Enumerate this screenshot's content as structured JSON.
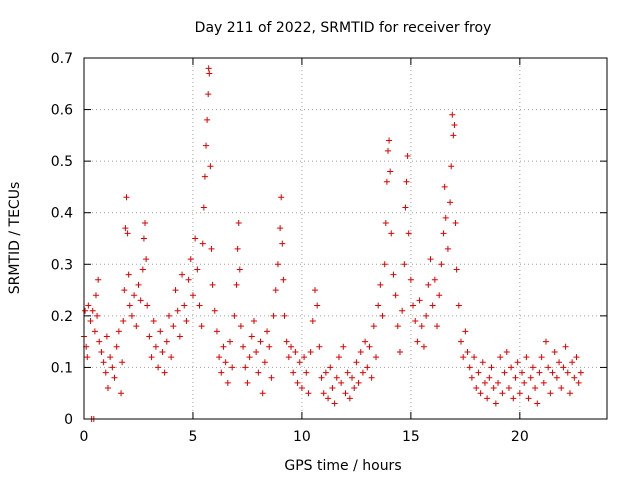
{
  "chart_data": {
    "type": "scatter",
    "title": "Day 211 of 2022, SRMTID for receiver froy",
    "xlabel": "GPS time / hours",
    "ylabel": "SRMTID / TECUs",
    "xlim": [
      0,
      24
    ],
    "ylim": [
      0,
      0.7
    ],
    "xticks": [
      0,
      5,
      10,
      15,
      20
    ],
    "xtick_labels": [
      "0",
      "5",
      "10",
      "15",
      "20"
    ],
    "yticks": [
      0,
      0.1,
      0.2,
      0.3,
      0.4,
      0.5,
      0.6,
      0.7
    ],
    "ytick_labels": [
      "0",
      "0.1",
      "0.2",
      "0.3",
      "0.4",
      "0.5",
      "0.6",
      "0.7"
    ],
    "grid": true,
    "marker": "+",
    "marker_color": "#e00000",
    "series": [
      {
        "name": "SRMTID",
        "color": "#e00000",
        "points": [
          [
            0.0,
            0.16
          ],
          [
            0.05,
            0.21
          ],
          [
            0.1,
            0.14
          ],
          [
            0.15,
            0.12
          ],
          [
            0.2,
            0.22
          ],
          [
            0.3,
            0.19
          ],
          [
            0.35,
            0.0
          ],
          [
            0.4,
            0.21
          ],
          [
            0.45,
            0.0
          ],
          [
            0.5,
            0.17
          ],
          [
            0.55,
            0.24
          ],
          [
            0.6,
            0.2
          ],
          [
            0.65,
            0.27
          ],
          [
            0.7,
            0.15
          ],
          [
            0.8,
            0.13
          ],
          [
            0.9,
            0.11
          ],
          [
            1.0,
            0.09
          ],
          [
            1.05,
            0.16
          ],
          [
            1.1,
            0.06
          ],
          [
            1.2,
            0.12
          ],
          [
            1.3,
            0.1
          ],
          [
            1.4,
            0.08
          ],
          [
            1.5,
            0.14
          ],
          [
            1.6,
            0.17
          ],
          [
            1.7,
            0.05
          ],
          [
            1.75,
            0.11
          ],
          [
            1.8,
            0.19
          ],
          [
            1.85,
            0.25
          ],
          [
            1.9,
            0.37
          ],
          [
            1.95,
            0.43
          ],
          [
            2.0,
            0.36
          ],
          [
            2.05,
            0.28
          ],
          [
            2.1,
            0.22
          ],
          [
            2.2,
            0.2
          ],
          [
            2.3,
            0.24
          ],
          [
            2.4,
            0.18
          ],
          [
            2.5,
            0.26
          ],
          [
            2.6,
            0.23
          ],
          [
            2.7,
            0.29
          ],
          [
            2.75,
            0.35
          ],
          [
            2.8,
            0.38
          ],
          [
            2.85,
            0.31
          ],
          [
            2.9,
            0.22
          ],
          [
            3.0,
            0.16
          ],
          [
            3.1,
            0.12
          ],
          [
            3.2,
            0.19
          ],
          [
            3.3,
            0.14
          ],
          [
            3.4,
            0.1
          ],
          [
            3.5,
            0.17
          ],
          [
            3.6,
            0.13
          ],
          [
            3.7,
            0.09
          ],
          [
            3.8,
            0.15
          ],
          [
            3.9,
            0.2
          ],
          [
            4.0,
            0.12
          ],
          [
            4.1,
            0.18
          ],
          [
            4.2,
            0.25
          ],
          [
            4.3,
            0.21
          ],
          [
            4.4,
            0.16
          ],
          [
            4.5,
            0.28
          ],
          [
            4.6,
            0.22
          ],
          [
            4.7,
            0.19
          ],
          [
            4.8,
            0.27
          ],
          [
            4.9,
            0.31
          ],
          [
            5.0,
            0.24
          ],
          [
            5.1,
            0.35
          ],
          [
            5.2,
            0.29
          ],
          [
            5.3,
            0.22
          ],
          [
            5.4,
            0.18
          ],
          [
            5.45,
            0.34
          ],
          [
            5.5,
            0.41
          ],
          [
            5.55,
            0.47
          ],
          [
            5.6,
            0.53
          ],
          [
            5.65,
            0.58
          ],
          [
            5.7,
            0.63
          ],
          [
            5.72,
            0.68
          ],
          [
            5.75,
            0.67
          ],
          [
            5.8,
            0.49
          ],
          [
            5.85,
            0.33
          ],
          [
            5.9,
            0.26
          ],
          [
            6.0,
            0.21
          ],
          [
            6.1,
            0.17
          ],
          [
            6.2,
            0.12
          ],
          [
            6.3,
            0.09
          ],
          [
            6.4,
            0.14
          ],
          [
            6.5,
            0.11
          ],
          [
            6.6,
            0.07
          ],
          [
            6.7,
            0.15
          ],
          [
            6.8,
            0.1
          ],
          [
            6.9,
            0.2
          ],
          [
            7.0,
            0.26
          ],
          [
            7.05,
            0.33
          ],
          [
            7.1,
            0.38
          ],
          [
            7.15,
            0.29
          ],
          [
            7.2,
            0.18
          ],
          [
            7.3,
            0.14
          ],
          [
            7.4,
            0.1
          ],
          [
            7.5,
            0.07
          ],
          [
            7.6,
            0.12
          ],
          [
            7.7,
            0.16
          ],
          [
            7.8,
            0.19
          ],
          [
            7.9,
            0.13
          ],
          [
            8.0,
            0.09
          ],
          [
            8.1,
            0.15
          ],
          [
            8.2,
            0.05
          ],
          [
            8.3,
            0.11
          ],
          [
            8.4,
            0.17
          ],
          [
            8.5,
            0.14
          ],
          [
            8.6,
            0.08
          ],
          [
            8.7,
            0.2
          ],
          [
            8.8,
            0.25
          ],
          [
            8.9,
            0.3
          ],
          [
            9.0,
            0.37
          ],
          [
            9.05,
            0.43
          ],
          [
            9.1,
            0.34
          ],
          [
            9.15,
            0.27
          ],
          [
            9.2,
            0.2
          ],
          [
            9.3,
            0.15
          ],
          [
            9.4,
            0.12
          ],
          [
            9.5,
            0.14
          ],
          [
            9.6,
            0.09
          ],
          [
            9.7,
            0.13
          ],
          [
            9.8,
            0.07
          ],
          [
            9.9,
            0.11
          ],
          [
            10.0,
            0.06
          ],
          [
            10.1,
            0.12
          ],
          [
            10.2,
            0.09
          ],
          [
            10.3,
            0.05
          ],
          [
            10.4,
            0.13
          ],
          [
            10.5,
            0.19
          ],
          [
            10.6,
            0.25
          ],
          [
            10.7,
            0.22
          ],
          [
            10.8,
            0.14
          ],
          [
            10.9,
            0.08
          ],
          [
            11.0,
            0.05
          ],
          [
            11.1,
            0.09
          ],
          [
            11.2,
            0.04
          ],
          [
            11.3,
            0.1
          ],
          [
            11.4,
            0.06
          ],
          [
            11.5,
            0.03
          ],
          [
            11.6,
            0.08
          ],
          [
            11.7,
            0.12
          ],
          [
            11.8,
            0.07
          ],
          [
            11.9,
            0.14
          ],
          [
            12.0,
            0.05
          ],
          [
            12.1,
            0.09
          ],
          [
            12.2,
            0.04
          ],
          [
            12.3,
            0.08
          ],
          [
            12.4,
            0.06
          ],
          [
            12.5,
            0.11
          ],
          [
            12.6,
            0.07
          ],
          [
            12.7,
            0.13
          ],
          [
            12.8,
            0.09
          ],
          [
            12.9,
            0.15
          ],
          [
            13.0,
            0.1
          ],
          [
            13.1,
            0.14
          ],
          [
            13.2,
            0.08
          ],
          [
            13.3,
            0.18
          ],
          [
            13.4,
            0.12
          ],
          [
            13.5,
            0.22
          ],
          [
            13.6,
            0.26
          ],
          [
            13.7,
            0.2
          ],
          [
            13.8,
            0.3
          ],
          [
            13.85,
            0.38
          ],
          [
            13.9,
            0.46
          ],
          [
            13.95,
            0.52
          ],
          [
            14.0,
            0.54
          ],
          [
            14.05,
            0.48
          ],
          [
            14.1,
            0.36
          ],
          [
            14.2,
            0.28
          ],
          [
            14.3,
            0.24
          ],
          [
            14.4,
            0.18
          ],
          [
            14.5,
            0.13
          ],
          [
            14.6,
            0.21
          ],
          [
            14.7,
            0.3
          ],
          [
            14.75,
            0.41
          ],
          [
            14.8,
            0.46
          ],
          [
            14.85,
            0.51
          ],
          [
            14.9,
            0.36
          ],
          [
            15.0,
            0.27
          ],
          [
            15.1,
            0.22
          ],
          [
            15.2,
            0.19
          ],
          [
            15.3,
            0.15
          ],
          [
            15.4,
            0.23
          ],
          [
            15.5,
            0.18
          ],
          [
            15.6,
            0.14
          ],
          [
            15.7,
            0.2
          ],
          [
            15.8,
            0.26
          ],
          [
            15.9,
            0.31
          ],
          [
            16.0,
            0.22
          ],
          [
            16.1,
            0.27
          ],
          [
            16.2,
            0.18
          ],
          [
            16.3,
            0.24
          ],
          [
            16.4,
            0.3
          ],
          [
            16.5,
            0.36
          ],
          [
            16.55,
            0.45
          ],
          [
            16.6,
            0.39
          ],
          [
            16.7,
            0.33
          ],
          [
            16.8,
            0.42
          ],
          [
            16.85,
            0.49
          ],
          [
            16.9,
            0.59
          ],
          [
            16.95,
            0.55
          ],
          [
            17.0,
            0.57
          ],
          [
            17.05,
            0.38
          ],
          [
            17.1,
            0.29
          ],
          [
            17.2,
            0.22
          ],
          [
            17.3,
            0.15
          ],
          [
            17.4,
            0.12
          ],
          [
            17.5,
            0.17
          ],
          [
            17.6,
            0.13
          ],
          [
            17.7,
            0.1
          ],
          [
            17.8,
            0.08
          ],
          [
            17.9,
            0.12
          ],
          [
            18.0,
            0.06
          ],
          [
            18.1,
            0.09
          ],
          [
            18.2,
            0.05
          ],
          [
            18.3,
            0.11
          ],
          [
            18.4,
            0.07
          ],
          [
            18.5,
            0.04
          ],
          [
            18.6,
            0.08
          ],
          [
            18.7,
            0.1
          ],
          [
            18.8,
            0.06
          ],
          [
            18.9,
            0.03
          ],
          [
            19.0,
            0.07
          ],
          [
            19.1,
            0.12
          ],
          [
            19.2,
            0.05
          ],
          [
            19.3,
            0.09
          ],
          [
            19.4,
            0.13
          ],
          [
            19.5,
            0.06
          ],
          [
            19.6,
            0.1
          ],
          [
            19.7,
            0.04
          ],
          [
            19.8,
            0.08
          ],
          [
            19.9,
            0.11
          ],
          [
            20.0,
            0.05
          ],
          [
            20.1,
            0.09
          ],
          [
            20.2,
            0.07
          ],
          [
            20.3,
            0.12
          ],
          [
            20.4,
            0.04
          ],
          [
            20.5,
            0.08
          ],
          [
            20.6,
            0.1
          ],
          [
            20.7,
            0.06
          ],
          [
            20.8,
            0.03
          ],
          [
            20.9,
            0.09
          ],
          [
            21.0,
            0.12
          ],
          [
            21.1,
            0.07
          ],
          [
            21.2,
            0.15
          ],
          [
            21.3,
            0.1
          ],
          [
            21.4,
            0.05
          ],
          [
            21.5,
            0.09
          ],
          [
            21.6,
            0.13
          ],
          [
            21.7,
            0.08
          ],
          [
            21.8,
            0.11
          ],
          [
            21.9,
            0.06
          ],
          [
            22.0,
            0.1
          ],
          [
            22.1,
            0.14
          ],
          [
            22.2,
            0.09
          ],
          [
            22.3,
            0.05
          ],
          [
            22.4,
            0.11
          ],
          [
            22.5,
            0.08
          ],
          [
            22.6,
            0.12
          ],
          [
            22.7,
            0.07
          ],
          [
            22.8,
            0.09
          ]
        ]
      }
    ]
  }
}
